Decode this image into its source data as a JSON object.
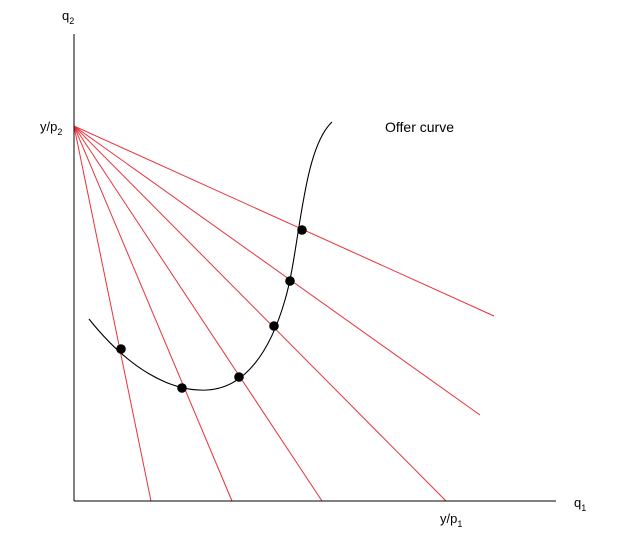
{
  "axes": {
    "y_axis_label": {
      "base": "q",
      "sub": "2"
    },
    "x_axis_label": {
      "base": "q",
      "sub": "1"
    },
    "y_intercept_label": {
      "base": "y/p",
      "sub": "2"
    },
    "x_intercept_label": {
      "base": "y/p",
      "sub": "1"
    }
  },
  "curve_label": "Offer curve",
  "colors": {
    "axis": "#000000",
    "budget_line": "#e8323c",
    "curve": "#000000",
    "point": "#000000"
  }
}
